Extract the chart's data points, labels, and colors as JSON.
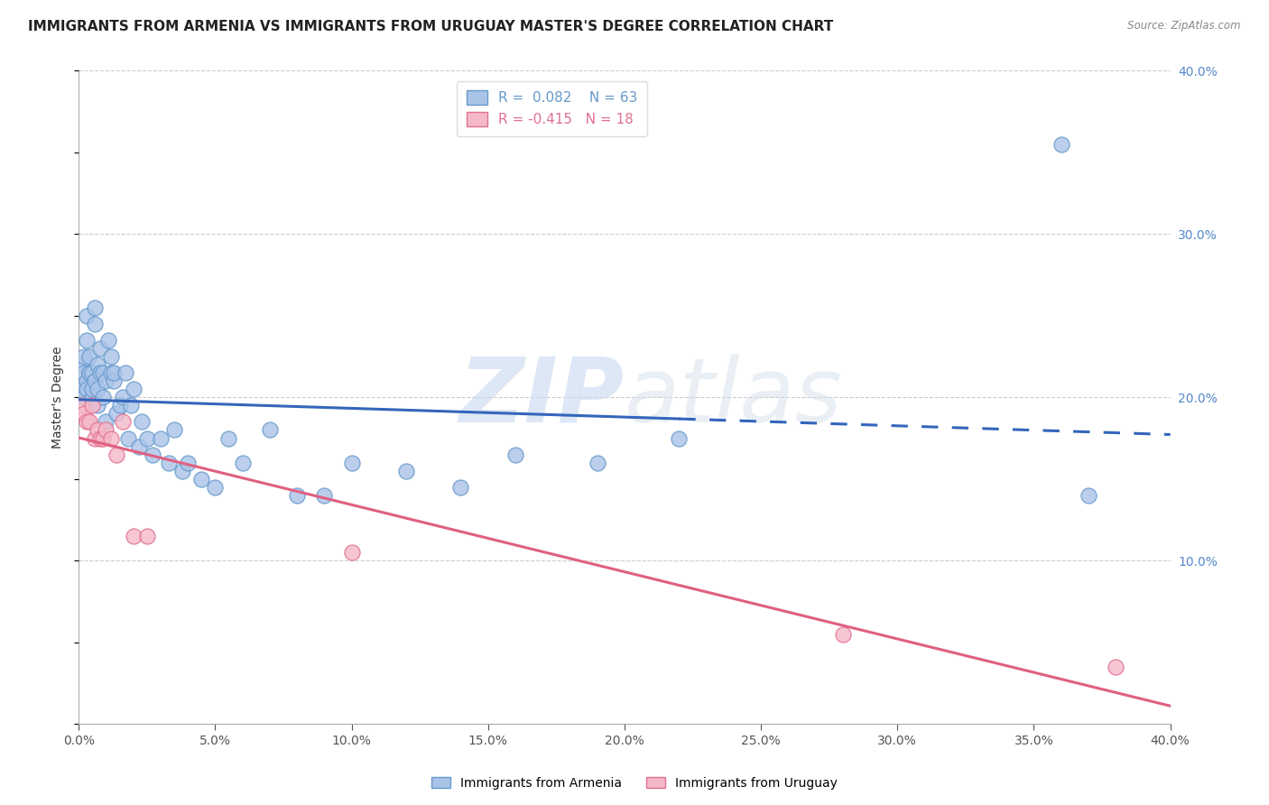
{
  "title": "IMMIGRANTS FROM ARMENIA VS IMMIGRANTS FROM URUGUAY MASTER'S DEGREE CORRELATION CHART",
  "source": "Source: ZipAtlas.com",
  "ylabel": "Master's Degree",
  "watermark": "ZIPatlas",
  "armenia_color": "#aac4e8",
  "armenia_edge": "#6699cc",
  "uruguay_color": "#f5b8c8",
  "uruguay_edge": "#e07090",
  "armenia_line_color": "#3366bb",
  "uruguay_line_color": "#e06080",
  "armenia_R": 0.082,
  "armenia_N": 63,
  "uruguay_R": -0.415,
  "uruguay_N": 18,
  "xlim": [
    0.0,
    0.4
  ],
  "ylim": [
    0.0,
    0.4
  ],
  "xticks": [
    0.0,
    0.05,
    0.1,
    0.15,
    0.2,
    0.25,
    0.3,
    0.35,
    0.4
  ],
  "yticks_right": [
    0.1,
    0.2,
    0.3,
    0.4
  ],
  "armenia_x": [
    0.001,
    0.001,
    0.002,
    0.002,
    0.002,
    0.003,
    0.003,
    0.003,
    0.003,
    0.004,
    0.004,
    0.004,
    0.005,
    0.005,
    0.005,
    0.006,
    0.006,
    0.006,
    0.007,
    0.007,
    0.007,
    0.008,
    0.008,
    0.009,
    0.009,
    0.01,
    0.01,
    0.011,
    0.012,
    0.012,
    0.013,
    0.013,
    0.014,
    0.015,
    0.016,
    0.017,
    0.018,
    0.019,
    0.02,
    0.022,
    0.023,
    0.025,
    0.027,
    0.03,
    0.033,
    0.035,
    0.038,
    0.04,
    0.045,
    0.05,
    0.055,
    0.06,
    0.07,
    0.08,
    0.09,
    0.1,
    0.12,
    0.14,
    0.16,
    0.19,
    0.22,
    0.36,
    0.37
  ],
  "armenia_y": [
    0.205,
    0.22,
    0.215,
    0.225,
    0.2,
    0.21,
    0.235,
    0.25,
    0.205,
    0.215,
    0.225,
    0.215,
    0.2,
    0.215,
    0.205,
    0.21,
    0.245,
    0.255,
    0.22,
    0.205,
    0.195,
    0.215,
    0.23,
    0.2,
    0.215,
    0.185,
    0.21,
    0.235,
    0.215,
    0.225,
    0.21,
    0.215,
    0.19,
    0.195,
    0.2,
    0.215,
    0.175,
    0.195,
    0.205,
    0.17,
    0.185,
    0.175,
    0.165,
    0.175,
    0.16,
    0.18,
    0.155,
    0.16,
    0.15,
    0.145,
    0.175,
    0.16,
    0.18,
    0.14,
    0.14,
    0.16,
    0.155,
    0.145,
    0.165,
    0.16,
    0.175,
    0.355,
    0.14
  ],
  "uruguay_x": [
    0.001,
    0.002,
    0.003,
    0.004,
    0.005,
    0.006,
    0.007,
    0.008,
    0.009,
    0.01,
    0.012,
    0.014,
    0.016,
    0.02,
    0.025,
    0.1,
    0.28,
    0.38
  ],
  "uruguay_y": [
    0.195,
    0.19,
    0.185,
    0.185,
    0.195,
    0.175,
    0.18,
    0.175,
    0.175,
    0.18,
    0.175,
    0.165,
    0.185,
    0.115,
    0.115,
    0.105,
    0.055,
    0.035
  ],
  "dashed_line_start_x": 0.22,
  "background_color": "#ffffff",
  "grid_color": "#cccccc",
  "right_axis_color": "#5588cc",
  "title_fontsize": 11,
  "axis_label_fontsize": 10,
  "tick_fontsize": 10,
  "legend_fontsize": 11
}
